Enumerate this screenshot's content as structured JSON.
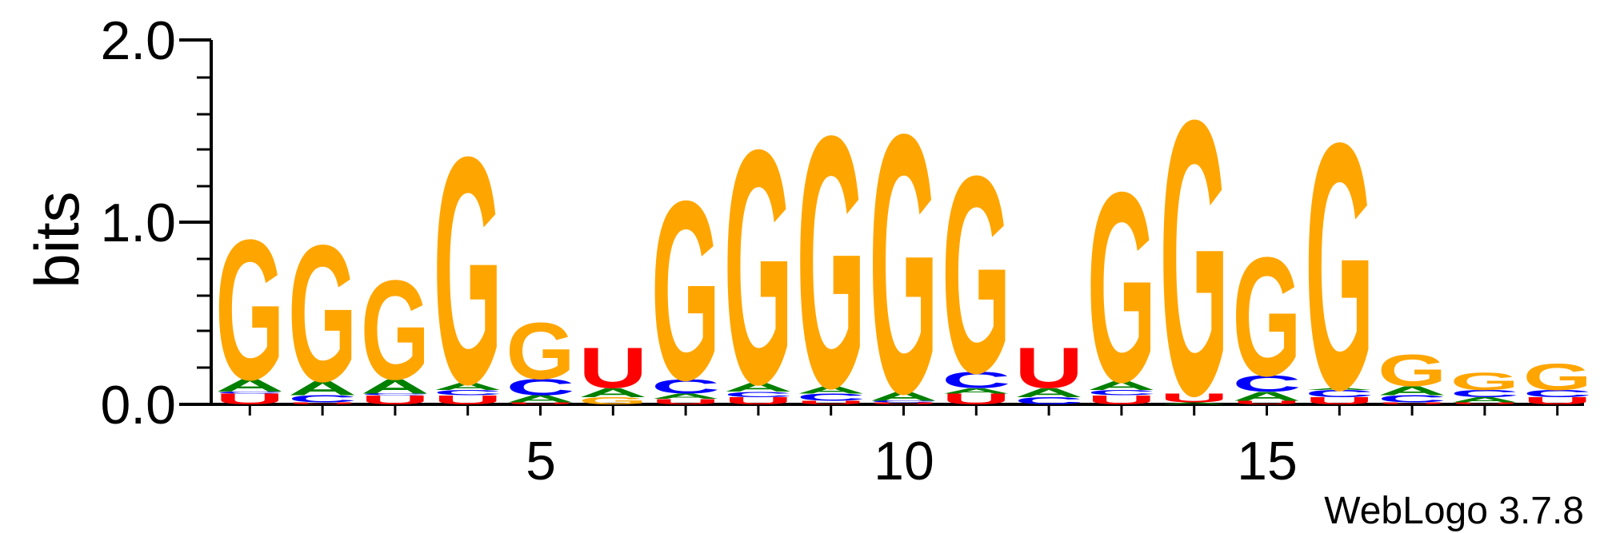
{
  "chart_data": {
    "type": "sequence-logo",
    "ylabel": "bits",
    "ylim": [
      0,
      2.0
    ],
    "yticks": [
      "0.0",
      "1.0",
      "2.0"
    ],
    "xticks": [
      "5",
      "10",
      "15"
    ],
    "credit": "WebLogo 3.7.8",
    "colors": {
      "G": "#FFA500",
      "A": "#008000",
      "C": "#0000FF",
      "U": "#FF0000"
    },
    "positions": [
      {
        "x": 1,
        "letters": [
          {
            "b": "U",
            "h": 0.06
          },
          {
            "b": "C",
            "h": 0.01
          },
          {
            "b": "A",
            "h": 0.07
          },
          {
            "b": "G",
            "h": 0.79
          }
        ]
      },
      {
        "x": 2,
        "letters": [
          {
            "b": "U",
            "h": 0.01
          },
          {
            "b": "C",
            "h": 0.04
          },
          {
            "b": "A",
            "h": 0.08
          },
          {
            "b": "G",
            "h": 0.77
          }
        ]
      },
      {
        "x": 3,
        "letters": [
          {
            "b": "U",
            "h": 0.05
          },
          {
            "b": "C",
            "h": 0.01
          },
          {
            "b": "A",
            "h": 0.08
          },
          {
            "b": "G",
            "h": 0.56
          }
        ]
      },
      {
        "x": 4,
        "letters": [
          {
            "b": "U",
            "h": 0.05
          },
          {
            "b": "C",
            "h": 0.03
          },
          {
            "b": "A",
            "h": 0.04
          },
          {
            "b": "G",
            "h": 1.28
          }
        ]
      },
      {
        "x": 5,
        "letters": [
          {
            "b": "U",
            "h": 0.01
          },
          {
            "b": "A",
            "h": 0.04
          },
          {
            "b": "C",
            "h": 0.09
          },
          {
            "b": "G",
            "h": 0.32
          }
        ]
      },
      {
        "x": 6,
        "letters": [
          {
            "b": "G",
            "h": 0.04
          },
          {
            "b": "A",
            "h": 0.05
          },
          {
            "b": "U",
            "h": 0.23
          }
        ]
      },
      {
        "x": 7,
        "letters": [
          {
            "b": "U",
            "h": 0.03
          },
          {
            "b": "A",
            "h": 0.03
          },
          {
            "b": "C",
            "h": 0.08
          },
          {
            "b": "G",
            "h": 1.01
          }
        ]
      },
      {
        "x": 8,
        "letters": [
          {
            "b": "U",
            "h": 0.04
          },
          {
            "b": "C",
            "h": 0.03
          },
          {
            "b": "A",
            "h": 0.05
          },
          {
            "b": "G",
            "h": 1.32
          }
        ]
      },
      {
        "x": 9,
        "letters": [
          {
            "b": "U",
            "h": 0.02
          },
          {
            "b": "C",
            "h": 0.04
          },
          {
            "b": "A",
            "h": 0.04
          },
          {
            "b": "G",
            "h": 1.42
          }
        ]
      },
      {
        "x": 10,
        "letters": [
          {
            "b": "U",
            "h": 0.01
          },
          {
            "b": "C",
            "h": 0.01
          },
          {
            "b": "A",
            "h": 0.05
          },
          {
            "b": "G",
            "h": 1.46
          }
        ]
      },
      {
        "x": 11,
        "letters": [
          {
            "b": "U",
            "h": 0.06
          },
          {
            "b": "A",
            "h": 0.03
          },
          {
            "b": "C",
            "h": 0.09
          },
          {
            "b": "G",
            "h": 1.11
          }
        ]
      },
      {
        "x": 12,
        "letters": [
          {
            "b": "C",
            "h": 0.04
          },
          {
            "b": "A",
            "h": 0.05
          },
          {
            "b": "U",
            "h": 0.23
          }
        ]
      },
      {
        "x": 13,
        "letters": [
          {
            "b": "U",
            "h": 0.05
          },
          {
            "b": "C",
            "h": 0.03
          },
          {
            "b": "A",
            "h": 0.05
          },
          {
            "b": "G",
            "h": 1.07
          }
        ]
      },
      {
        "x": 14,
        "letters": [
          {
            "b": "A",
            "h": 0.01
          },
          {
            "b": "U",
            "h": 0.05
          },
          {
            "b": "G",
            "h": 1.55
          }
        ]
      },
      {
        "x": 15,
        "letters": [
          {
            "b": "U",
            "h": 0.02
          },
          {
            "b": "A",
            "h": 0.05
          },
          {
            "b": "C",
            "h": 0.09
          },
          {
            "b": "G",
            "h": 0.67
          }
        ]
      },
      {
        "x": 16,
        "letters": [
          {
            "b": "U",
            "h": 0.04
          },
          {
            "b": "C",
            "h": 0.04
          },
          {
            "b": "A",
            "h": 0.01
          },
          {
            "b": "G",
            "h": 1.39
          }
        ]
      },
      {
        "x": 17,
        "letters": [
          {
            "b": "U",
            "h": 0.01
          },
          {
            "b": "C",
            "h": 0.04
          },
          {
            "b": "A",
            "h": 0.05
          },
          {
            "b": "G",
            "h": 0.18
          }
        ]
      },
      {
        "x": 18,
        "letters": [
          {
            "b": "U",
            "h": 0.01
          },
          {
            "b": "A",
            "h": 0.03
          },
          {
            "b": "C",
            "h": 0.04
          },
          {
            "b": "G",
            "h": 0.1
          }
        ]
      },
      {
        "x": 19,
        "letters": [
          {
            "b": "U",
            "h": 0.04
          },
          {
            "b": "C",
            "h": 0.04
          },
          {
            "b": "G",
            "h": 0.15
          }
        ]
      }
    ]
  }
}
